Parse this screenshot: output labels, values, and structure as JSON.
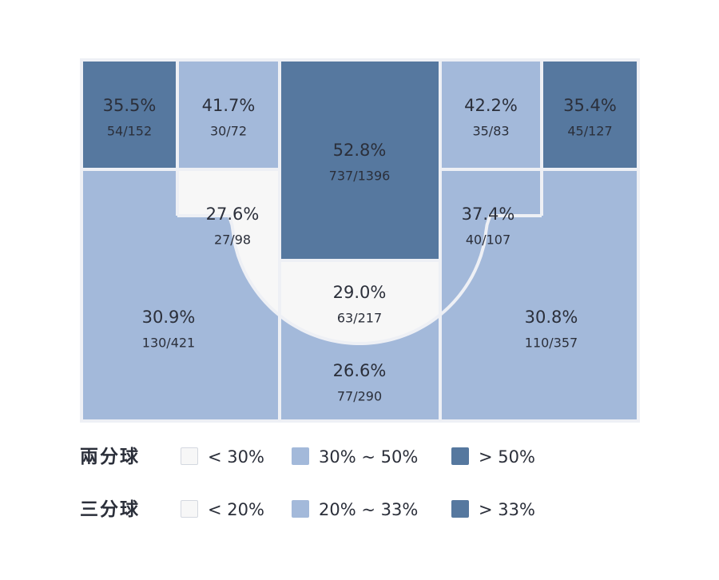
{
  "chart_data": {
    "type": "heatmap",
    "title": "",
    "colors": {
      "low": "#f7f7f7",
      "mid": "#a3b9da",
      "high": "#56789f",
      "lines": "#eef0f5"
    },
    "zones": [
      {
        "id": "left-corner-three",
        "pct": "35.5%",
        "frac": "54/152",
        "made": 54,
        "attempts": 152,
        "tier": "high"
      },
      {
        "id": "left-short-baseline",
        "pct": "41.7%",
        "frac": "30/72",
        "made": 30,
        "attempts": 72,
        "tier": "mid"
      },
      {
        "id": "paint",
        "pct": "52.8%",
        "frac": "737/1396",
        "made": 737,
        "attempts": 1396,
        "tier": "high"
      },
      {
        "id": "right-short-baseline",
        "pct": "42.2%",
        "frac": "35/83",
        "made": 35,
        "attempts": 83,
        "tier": "mid"
      },
      {
        "id": "right-corner-three",
        "pct": "35.4%",
        "frac": "45/127",
        "made": 45,
        "attempts": 127,
        "tier": "high"
      },
      {
        "id": "left-midrange",
        "pct": "27.6%",
        "frac": "27/98",
        "made": 27,
        "attempts": 98,
        "tier": "low"
      },
      {
        "id": "right-midrange",
        "pct": "37.4%",
        "frac": "40/107",
        "made": 40,
        "attempts": 107,
        "tier": "mid"
      },
      {
        "id": "top-of-key-midrange",
        "pct": "29.0%",
        "frac": "63/217",
        "made": 63,
        "attempts": 217,
        "tier": "low"
      },
      {
        "id": "left-wing-three",
        "pct": "30.9%",
        "frac": "130/421",
        "made": 130,
        "attempts": 421,
        "tier": "mid"
      },
      {
        "id": "top-of-key-three",
        "pct": "26.6%",
        "frac": "77/290",
        "made": 77,
        "attempts": 290,
        "tier": "mid"
      },
      {
        "id": "right-wing-three",
        "pct": "30.8%",
        "frac": "110/357",
        "made": 110,
        "attempts": 357,
        "tier": "mid"
      }
    ],
    "legend": [
      {
        "title": "兩分球",
        "items": [
          {
            "label": "< 30%",
            "tier": "low"
          },
          {
            "label": "30% ~ 50%",
            "tier": "mid"
          },
          {
            "label": "> 50%",
            "tier": "high"
          }
        ]
      },
      {
        "title": "三分球",
        "items": [
          {
            "label": "< 20%",
            "tier": "low"
          },
          {
            "label": "20% ~ 33%",
            "tier": "mid"
          },
          {
            "label": "> 33%",
            "tier": "high"
          }
        ]
      }
    ]
  }
}
